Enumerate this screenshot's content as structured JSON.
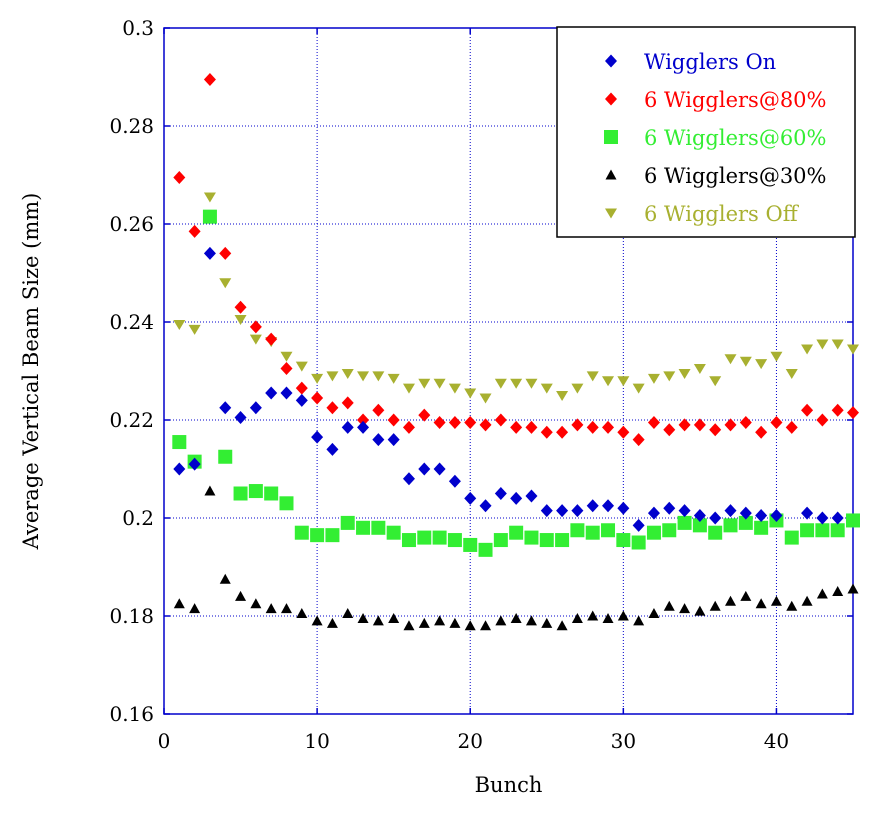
{
  "chart_data": {
    "type": "scatter",
    "xlabel": "Bunch",
    "ylabel": "Average Vertical Beam Size (mm)",
    "xlim": [
      0,
      45
    ],
    "ylim": [
      0.16,
      0.3
    ],
    "xticks": [
      0,
      10,
      20,
      30,
      40
    ],
    "yticks": [
      0.16,
      0.18,
      0.2,
      0.22,
      0.24,
      0.26,
      0.28,
      0.3
    ],
    "ytick_labels": [
      "0.16",
      "0.18",
      "0.2",
      "0.22",
      "0.24",
      "0.26",
      "0.28",
      "0.3"
    ],
    "grid": true,
    "legend_position": "top-right",
    "series": [
      {
        "name": "Wigglers On",
        "color": "#0000cc",
        "marker": "diamond",
        "x": [
          1,
          2,
          3,
          4,
          5,
          6,
          7,
          8,
          9,
          10,
          11,
          12,
          13,
          14,
          15,
          16,
          17,
          18,
          19,
          20,
          21,
          22,
          23,
          24,
          25,
          26,
          27,
          28,
          29,
          30,
          31,
          32,
          33,
          34,
          35,
          36,
          37,
          38,
          39,
          40,
          42,
          43,
          44
        ],
        "y": [
          0.21,
          0.211,
          0.254,
          0.2225,
          0.2205,
          0.2225,
          0.2255,
          0.2255,
          0.224,
          0.2165,
          0.214,
          0.2185,
          0.2185,
          0.216,
          0.216,
          0.208,
          0.21,
          0.21,
          0.2075,
          0.204,
          0.2025,
          0.205,
          0.204,
          0.2045,
          0.2015,
          0.2015,
          0.2015,
          0.2025,
          0.2025,
          0.202,
          0.1985,
          0.201,
          0.202,
          0.2015,
          0.2005,
          0.2,
          0.2015,
          0.201,
          0.2005,
          0.2005,
          0.201,
          0.2,
          0.2
        ]
      },
      {
        "name": "6 Wigglers@80%",
        "color": "#ff0000",
        "marker": "diamond",
        "x": [
          1,
          2,
          3,
          4,
          5,
          6,
          7,
          8,
          9,
          10,
          11,
          12,
          13,
          14,
          15,
          16,
          17,
          18,
          19,
          20,
          21,
          22,
          23,
          24,
          25,
          26,
          27,
          28,
          29,
          30,
          31,
          32,
          33,
          34,
          35,
          36,
          37,
          38,
          39,
          40,
          41,
          42,
          43,
          44,
          45
        ],
        "y": [
          0.2695,
          0.2585,
          0.2895,
          0.254,
          0.243,
          0.239,
          0.2365,
          0.2305,
          0.2265,
          0.2245,
          0.2225,
          0.2235,
          0.22,
          0.222,
          0.22,
          0.2185,
          0.221,
          0.2195,
          0.2195,
          0.2195,
          0.219,
          0.22,
          0.2185,
          0.2185,
          0.2175,
          0.2175,
          0.219,
          0.2185,
          0.2185,
          0.2175,
          0.216,
          0.2195,
          0.218,
          0.219,
          0.219,
          0.218,
          0.219,
          0.2195,
          0.2175,
          0.2195,
          0.2185,
          0.222,
          0.22,
          0.222,
          0.2215
        ]
      },
      {
        "name": "6 Wigglers@60%",
        "color": "#33ee33",
        "marker": "square",
        "x": [
          1,
          2,
          3,
          4,
          5,
          6,
          7,
          8,
          9,
          10,
          11,
          12,
          13,
          14,
          15,
          16,
          17,
          18,
          19,
          20,
          21,
          22,
          23,
          24,
          25,
          26,
          27,
          28,
          29,
          30,
          31,
          32,
          33,
          34,
          35,
          36,
          37,
          38,
          39,
          40,
          41,
          42,
          43,
          44,
          45
        ],
        "y": [
          0.2155,
          0.2115,
          0.2615,
          0.2125,
          0.205,
          0.2055,
          0.205,
          0.203,
          0.197,
          0.1965,
          0.1965,
          0.199,
          0.198,
          0.198,
          0.197,
          0.1955,
          0.196,
          0.196,
          0.1955,
          0.1945,
          0.1935,
          0.1955,
          0.197,
          0.196,
          0.1955,
          0.1955,
          0.1975,
          0.197,
          0.1975,
          0.1955,
          0.195,
          0.197,
          0.1975,
          0.199,
          0.1985,
          0.197,
          0.1985,
          0.199,
          0.198,
          0.1995,
          0.196,
          0.1975,
          0.1975,
          0.1975,
          0.1995
        ]
      },
      {
        "name": "6 Wigglers@30%",
        "color": "#000000",
        "marker": "triangle-up",
        "x": [
          1,
          2,
          3,
          4,
          5,
          6,
          7,
          8,
          9,
          10,
          11,
          12,
          13,
          14,
          15,
          16,
          17,
          18,
          19,
          20,
          21,
          22,
          23,
          24,
          25,
          26,
          27,
          28,
          29,
          30,
          31,
          32,
          33,
          34,
          35,
          36,
          37,
          38,
          39,
          40,
          41,
          42,
          43,
          44,
          45
        ],
        "y": [
          0.1825,
          0.1815,
          0.2055,
          0.1875,
          0.184,
          0.1825,
          0.1815,
          0.1815,
          0.1805,
          0.179,
          0.1785,
          0.1805,
          0.1795,
          0.179,
          0.1795,
          0.178,
          0.1785,
          0.179,
          0.1785,
          0.178,
          0.178,
          0.179,
          0.1795,
          0.179,
          0.1785,
          0.178,
          0.1795,
          0.18,
          0.1795,
          0.18,
          0.179,
          0.1805,
          0.182,
          0.1815,
          0.181,
          0.182,
          0.183,
          0.184,
          0.1825,
          0.183,
          0.182,
          0.183,
          0.1845,
          0.185,
          0.1855
        ]
      },
      {
        "name": "6 Wigglers Off",
        "color": "#a8b030",
        "marker": "triangle-down",
        "x": [
          1,
          2,
          3,
          4,
          5,
          6,
          7,
          8,
          9,
          10,
          11,
          12,
          13,
          14,
          15,
          16,
          17,
          18,
          19,
          20,
          21,
          22,
          23,
          24,
          25,
          26,
          27,
          28,
          29,
          30,
          31,
          32,
          33,
          34,
          35,
          36,
          37,
          38,
          39,
          40,
          41,
          42,
          43,
          44,
          45
        ],
        "y": [
          0.2395,
          0.2385,
          0.2655,
          0.248,
          0.2405,
          0.2365,
          0.236,
          0.233,
          0.231,
          0.2285,
          0.229,
          0.2295,
          0.229,
          0.229,
          0.2285,
          0.2265,
          0.2275,
          0.2275,
          0.2265,
          0.2255,
          0.2245,
          0.2275,
          0.2275,
          0.2275,
          0.2265,
          0.225,
          0.2265,
          0.229,
          0.228,
          0.228,
          0.2265,
          0.2285,
          0.229,
          0.2295,
          0.2305,
          0.228,
          0.2325,
          0.232,
          0.2315,
          0.233,
          0.2295,
          0.2345,
          0.2355,
          0.2355,
          0.2345
        ]
      }
    ]
  }
}
